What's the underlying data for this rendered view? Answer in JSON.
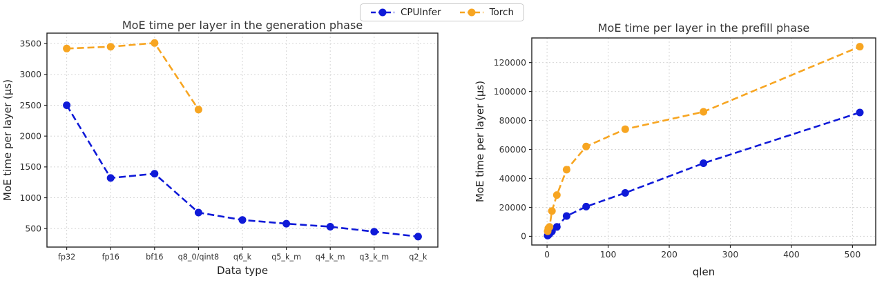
{
  "legend": {
    "items": [
      {
        "label": "CPUInfer",
        "color": "#0f1ad8"
      },
      {
        "label": "Torch",
        "color": "#f7a521"
      }
    ]
  },
  "chart_data": [
    {
      "type": "line",
      "title": "MoE time per layer in the generation phase",
      "xlabel": "Data type",
      "ylabel": "MoE time per layer (µs)",
      "categories": [
        "fp32",
        "fp16",
        "bf16",
        "q8_0/qint8",
        "q6_k",
        "q5_k_m",
        "q4_k_m",
        "q3_k_m",
        "q2_k"
      ],
      "series": [
        {
          "name": "CPUInfer",
          "color": "#0f1ad8",
          "values": [
            2500,
            1320,
            1390,
            760,
            640,
            580,
            530,
            450,
            370
          ]
        },
        {
          "name": "Torch",
          "color": "#f7a521",
          "values": [
            3420,
            3450,
            3510,
            2430,
            null,
            null,
            null,
            null,
            null
          ]
        }
      ],
      "yticks": [
        500,
        1000,
        1500,
        2000,
        2500,
        3000,
        3500
      ],
      "ylim": [
        200,
        3670
      ],
      "grid": true,
      "line_style": "dashed",
      "legend_position": "top-center"
    },
    {
      "type": "line",
      "title": "MoE time per layer in the prefill phase",
      "xlabel": "qlen",
      "ylabel": "MoE time per layer (µs)",
      "x": [
        1,
        2,
        4,
        8,
        16,
        32,
        64,
        128,
        256,
        512
      ],
      "series": [
        {
          "name": "CPUInfer",
          "color": "#0f1ad8",
          "values": [
            500,
            900,
            1700,
            3400,
            6500,
            14000,
            20500,
            30000,
            50500,
            85500
          ]
        },
        {
          "name": "Torch",
          "color": "#f7a521",
          "values": [
            3500,
            5500,
            6500,
            17500,
            28500,
            46000,
            62000,
            74000,
            86000,
            131000
          ]
        }
      ],
      "xticks": [
        0,
        100,
        200,
        300,
        400,
        500
      ],
      "yticks": [
        0,
        20000,
        40000,
        60000,
        80000,
        100000,
        120000
      ],
      "xlim": [
        -25,
        538
      ],
      "ylim": [
        -6000,
        137000
      ],
      "grid": true,
      "line_style": "dashed",
      "legend_position": "top-center"
    }
  ]
}
